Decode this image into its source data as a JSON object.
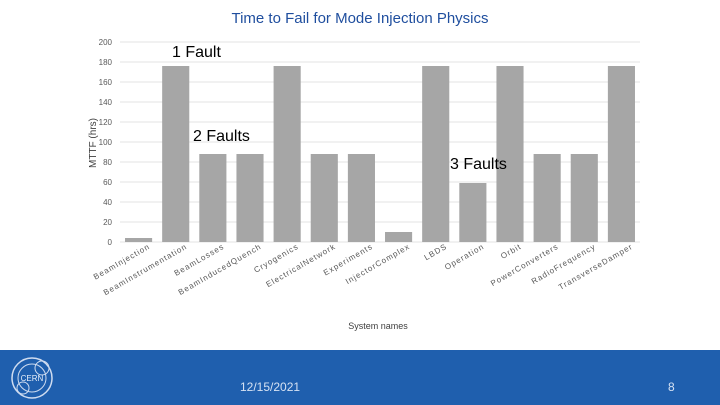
{
  "slide": {
    "title": "Time to Fail for Mode Injection Physics",
    "date": "12/15/2021",
    "page_number": "8",
    "logo": "CERN"
  },
  "chart_data": {
    "type": "bar",
    "title": "Time to Fail for Mode Injection Physics",
    "xlabel": "System names",
    "ylabel": "MTTF (hrs)",
    "ylim": [
      0,
      200
    ],
    "yticks": [
      0,
      20,
      40,
      60,
      80,
      100,
      120,
      140,
      160,
      180,
      200
    ],
    "grid": true,
    "bar_color": "#a6a6a6",
    "categories": [
      "BeamInjection",
      "BeamInstrumentation",
      "BeamLosses",
      "BeamInducedQuench",
      "Cryogenics",
      "ElectricalNetwork",
      "Experiments",
      "InjectorComplex",
      "LBDS",
      "Operation",
      "Orbit",
      "PowerConverters",
      "RadioFrequency",
      "TransverseDamper"
    ],
    "values": [
      4,
      176,
      88,
      88,
      176,
      88,
      88,
      10,
      176,
      59,
      176,
      88,
      88,
      176
    ],
    "annotations": [
      "1 Fault",
      "2 Faults",
      "3 Faults"
    ]
  }
}
